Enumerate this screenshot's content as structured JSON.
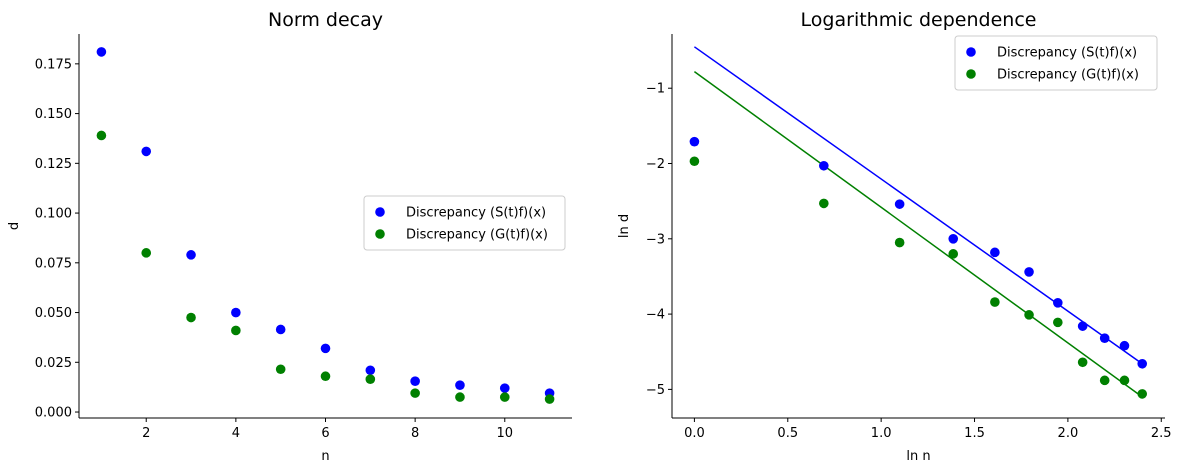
{
  "chart_data": [
    {
      "type": "scatter",
      "title": "Norm decay",
      "xlabel": "n",
      "ylabel": "d",
      "xlim": [
        0.5,
        11.5
      ],
      "ylim": [
        -0.003,
        0.19
      ],
      "xticks": [
        2,
        4,
        6,
        8,
        10
      ],
      "xtick_labels": [
        "2",
        "4",
        "6",
        "8",
        "10"
      ],
      "yticks": [
        0,
        0.025,
        0.05,
        0.075,
        0.1,
        0.125,
        0.15,
        0.175
      ],
      "ytick_labels": [
        "0.000",
        "0.025",
        "0.050",
        "0.075",
        "0.100",
        "0.125",
        "0.150",
        "0.175"
      ],
      "legend_position": "center-right",
      "series": [
        {
          "name": "Discrepancy (S(t)f)(x)",
          "color": "#0000ff",
          "points": [
            [
              1,
              0.181
            ],
            [
              2,
              0.131
            ],
            [
              3,
              0.079
            ],
            [
              4,
              0.05
            ],
            [
              5,
              0.0415
            ],
            [
              6,
              0.032
            ],
            [
              7,
              0.021
            ],
            [
              8,
              0.0155
            ],
            [
              9,
              0.0135
            ],
            [
              10,
              0.012
            ],
            [
              11,
              0.0095
            ]
          ]
        },
        {
          "name": "Discrepancy (G(t)f)(x)",
          "color": "#008000",
          "points": [
            [
              1,
              0.139
            ],
            [
              2,
              0.08
            ],
            [
              3,
              0.0475
            ],
            [
              4,
              0.041
            ],
            [
              5,
              0.0215
            ],
            [
              6,
              0.018
            ],
            [
              7,
              0.0165
            ],
            [
              8,
              0.0095
            ],
            [
              9,
              0.0075
            ],
            [
              10,
              0.0075
            ],
            [
              11,
              0.0065
            ]
          ]
        }
      ]
    },
    {
      "type": "scatter",
      "title": "Logarithmic dependence",
      "xlabel": "ln n",
      "ylabel": "ln d",
      "xlim": [
        -0.12,
        2.52
      ],
      "ylim": [
        -5.38,
        -0.28
      ],
      "xticks": [
        0,
        0.5,
        1,
        1.5,
        2,
        2.5
      ],
      "xtick_labels": [
        "0.0",
        "0.5",
        "1.0",
        "1.5",
        "2.0",
        "2.5"
      ],
      "yticks": [
        -5,
        -4,
        -3,
        -2,
        -1
      ],
      "ytick_labels": [
        "−5",
        "−4",
        "−3",
        "−2",
        "−1"
      ],
      "legend_position": "top-right",
      "series": [
        {
          "name": "Discrepancy (S(t)f)(x)",
          "color": "#0000ff",
          "points": [
            [
              0,
              -1.71
            ],
            [
              0.693,
              -2.03
            ],
            [
              1.099,
              -2.54
            ],
            [
              1.386,
              -3.0
            ],
            [
              1.609,
              -3.18
            ],
            [
              1.792,
              -3.44
            ],
            [
              1.946,
              -3.85
            ],
            [
              2.079,
              -4.16
            ],
            [
              2.197,
              -4.32
            ],
            [
              2.303,
              -4.42
            ],
            [
              2.398,
              -4.66
            ]
          ],
          "fit_line": [
            [
              0,
              -0.45
            ],
            [
              2.398,
              -4.66
            ]
          ]
        },
        {
          "name": "Discrepancy (G(t)f)(x)",
          "color": "#008000",
          "points": [
            [
              0,
              -1.97
            ],
            [
              0.693,
              -2.53
            ],
            [
              1.099,
              -3.05
            ],
            [
              1.386,
              -3.2
            ],
            [
              1.609,
              -3.84
            ],
            [
              1.792,
              -4.01
            ],
            [
              1.946,
              -4.11
            ],
            [
              2.079,
              -4.64
            ],
            [
              2.197,
              -4.88
            ],
            [
              2.303,
              -4.88
            ],
            [
              2.398,
              -5.06
            ]
          ],
          "fit_line": [
            [
              0,
              -0.78
            ],
            [
              2.398,
              -5.1
            ]
          ]
        }
      ]
    }
  ]
}
